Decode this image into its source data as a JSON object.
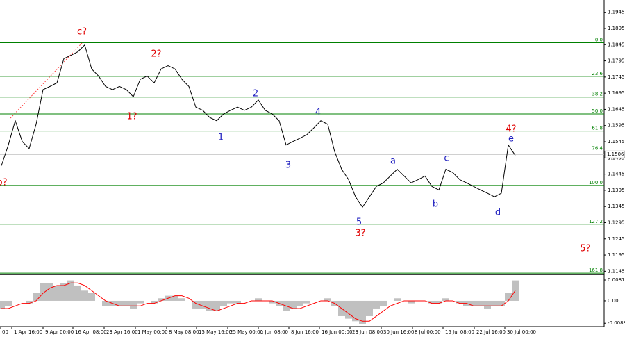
{
  "chart_data": [
    {
      "type": "line",
      "color": "#000000",
      "values": [
        1.1471,
        1.1535,
        1.161,
        1.1546,
        1.1524,
        1.1599,
        1.1706,
        1.1716,
        1.1727,
        1.1802,
        1.1812,
        1.1823,
        1.1844,
        1.177,
        1.1748,
        1.1716,
        1.1706,
        1.1716,
        1.1706,
        1.1684,
        1.1738,
        1.1748,
        1.1727,
        1.177,
        1.178,
        1.177,
        1.1738,
        1.1716,
        1.1652,
        1.1642,
        1.162,
        1.161,
        1.1631,
        1.1642,
        1.1652,
        1.1642,
        1.1652,
        1.1674,
        1.1642,
        1.1631,
        1.161,
        1.1535,
        1.1546,
        1.1556,
        1.1567,
        1.1588,
        1.161,
        1.1599,
        1.1514,
        1.146,
        1.1428,
        1.1375,
        1.1343,
        1.1375,
        1.1407,
        1.1418,
        1.1439,
        1.146,
        1.1439,
        1.1418,
        1.1428,
        1.1439,
        1.1407,
        1.1396,
        1.146,
        1.145,
        1.1428,
        1.1418,
        1.1407,
        1.1396,
        1.1386,
        1.1375,
        1.1386,
        1.1535,
        1.1503
      ],
      "xlim": [
        -0.2,
        86.8
      ],
      "xticks": [
        {
          "value": -0.2,
          "label": "00"
        },
        {
          "value": 1.5,
          "label": "1 Apr 16:00"
        },
        {
          "value": 6.0,
          "label": "9 Apr 00:00"
        },
        {
          "value": 10.3,
          "label": "16 Apr 08:00"
        },
        {
          "value": 14.8,
          "label": "23 Apr 16:00"
        },
        {
          "value": 19.3,
          "label": "1 May 00:00"
        },
        {
          "value": 23.8,
          "label": "8 May 08:00"
        },
        {
          "value": 28.1,
          "label": "15 May 16:00"
        },
        {
          "value": 32.6,
          "label": "25 May 00:00"
        },
        {
          "value": 37.0,
          "label": "1 Jun 08:00"
        },
        {
          "value": 41.4,
          "label": "8 Jun 16:00"
        },
        {
          "value": 45.8,
          "label": "16 Jun 00:00"
        },
        {
          "value": 50.2,
          "label": "23 Jun 08:00"
        },
        {
          "value": 54.7,
          "label": "30 Jun 16:00"
        },
        {
          "value": 59.2,
          "label": "8 Jul 00:00"
        },
        {
          "value": 63.6,
          "label": "15 Jul 08:00"
        },
        {
          "value": 68.1,
          "label": "22 Jul 16:00"
        },
        {
          "value": 72.5,
          "label": "30 Jul 00:00"
        }
      ],
      "ylim": [
        1.1135,
        1.1983
      ],
      "yticks": [
        1.1945,
        1.1895,
        1.1845,
        1.1795,
        1.1745,
        1.1695,
        1.1645,
        1.1595,
        1.1545,
        1.1495,
        1.1445,
        1.1395,
        1.1345,
        1.1295,
        1.1245,
        1.1195,
        1.1145
      ],
      "last_price": 1.1506,
      "fib_color": "#008000",
      "fib_levels": [
        {
          "label": "0.0",
          "price": 1.1851
        },
        {
          "label": "23.6",
          "price": 1.1747
        },
        {
          "label": "38.2",
          "price": 1.1683
        },
        {
          "label": "50.0",
          "price": 1.1631
        },
        {
          "label": "61.8",
          "price": 1.1578
        },
        {
          "label": "76.4",
          "price": 1.1516
        },
        {
          "label": "100.0",
          "price": 1.141
        },
        {
          "label": "127.2",
          "price": 1.129
        },
        {
          "label": "161.8",
          "price": 1.1139
        }
      ],
      "annotations": [
        {
          "text": "c?",
          "color": "#e00000"
        },
        {
          "text": "2?",
          "color": "#e00000"
        },
        {
          "text": "1?",
          "color": "#e00000"
        },
        {
          "text": "b?",
          "color": "#e00000"
        },
        {
          "text": "2",
          "color": "#2020c0"
        },
        {
          "text": "4",
          "color": "#2020c0"
        },
        {
          "text": "1",
          "color": "#2020c0"
        },
        {
          "text": "3",
          "color": "#2020c0"
        },
        {
          "text": "5",
          "color": "#2020c0"
        },
        {
          "text": "3?",
          "color": "#e00000"
        },
        {
          "text": "a",
          "color": "#2020c0"
        },
        {
          "text": "b",
          "color": "#2020c0"
        },
        {
          "text": "c",
          "color": "#2020c0"
        },
        {
          "text": "d",
          "color": "#2020c0"
        },
        {
          "text": "e",
          "color": "#2020c0"
        },
        {
          "text": "4?",
          "color": "#e00000"
        },
        {
          "text": "5?",
          "color": "#e00000"
        }
      ]
    },
    {
      "type": "bar",
      "color": "#c0c0c0",
      "values": [
        -0.003,
        -0.002,
        0.0,
        0.0,
        -0.001,
        0.003,
        0.007,
        0.007,
        0.006,
        0.007,
        0.008,
        0.006,
        0.004,
        0.003,
        0.0,
        -0.002,
        -0.002,
        -0.002,
        -0.002,
        -0.003,
        -0.001,
        0.0,
        -0.001,
        0.001,
        0.002,
        0.002,
        0.001,
        0.0,
        -0.003,
        -0.003,
        -0.004,
        -0.004,
        -0.002,
        -0.001,
        -0.001,
        0.0,
        0.0,
        0.001,
        0.0,
        -0.001,
        -0.002,
        -0.004,
        -0.003,
        -0.002,
        -0.001,
        0.0,
        0.0,
        0.001,
        -0.002,
        -0.006,
        -0.007,
        -0.008,
        -0.009,
        -0.006,
        -0.003,
        -0.002,
        0.0,
        0.001,
        0.0,
        -0.001,
        0.0,
        0.0,
        -0.001,
        -0.001,
        0.001,
        0.0,
        -0.001,
        -0.002,
        -0.002,
        -0.002,
        -0.003,
        -0.002,
        -0.002,
        0.003,
        0.008
      ],
      "signal": {
        "color": "#ff0000",
        "values": [
          -0.003,
          -0.003,
          -0.002,
          -0.001,
          -0.001,
          0.0,
          0.003,
          0.005,
          0.006,
          0.006,
          0.007,
          0.007,
          0.006,
          0.004,
          0.002,
          0.0,
          -0.001,
          -0.002,
          -0.002,
          -0.002,
          -0.002,
          -0.001,
          -0.001,
          0.0,
          0.001,
          0.002,
          0.002,
          0.001,
          -0.001,
          -0.002,
          -0.003,
          -0.004,
          -0.003,
          -0.002,
          -0.001,
          -0.001,
          0.0,
          0.0,
          0.0,
          0.0,
          -0.001,
          -0.002,
          -0.003,
          -0.003,
          -0.002,
          -0.001,
          0.0,
          0.0,
          -0.001,
          -0.003,
          -0.005,
          -0.007,
          -0.008,
          -0.008,
          -0.006,
          -0.004,
          -0.002,
          -0.001,
          0.0,
          0.0,
          0.0,
          0.0,
          -0.001,
          -0.001,
          0.0,
          0.0,
          -0.001,
          -0.001,
          -0.002,
          -0.002,
          -0.002,
          -0.002,
          -0.002,
          0.0,
          0.004
        ]
      },
      "xlim": [
        -0.2,
        86.8
      ],
      "ylim": [
        -0.0101,
        0.0098
      ],
      "yticks": [
        0.00816,
        {
          "value": 0,
          "label": "0.00"
        },
        -0.0088
      ]
    }
  ]
}
